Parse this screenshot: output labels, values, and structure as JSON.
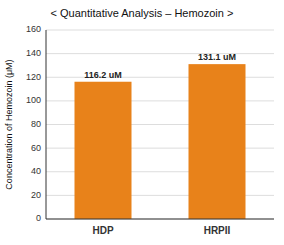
{
  "chart_data": {
    "type": "bar",
    "title": "< Quantitative Analysis – Hemozoin >",
    "categories": [
      "HDP",
      "HRPII"
    ],
    "values": [
      116.2,
      131.1
    ],
    "value_labels": [
      "116.2 uM",
      "131.1 uM"
    ],
    "data_labels": true,
    "color": "#E8821A",
    "ylabel": "Concentration of Hemozoin (μM)",
    "ylim": [
      0,
      160
    ],
    "yticks": [
      0,
      20,
      40,
      60,
      80,
      100,
      120,
      140,
      160
    ],
    "grid": true
  }
}
